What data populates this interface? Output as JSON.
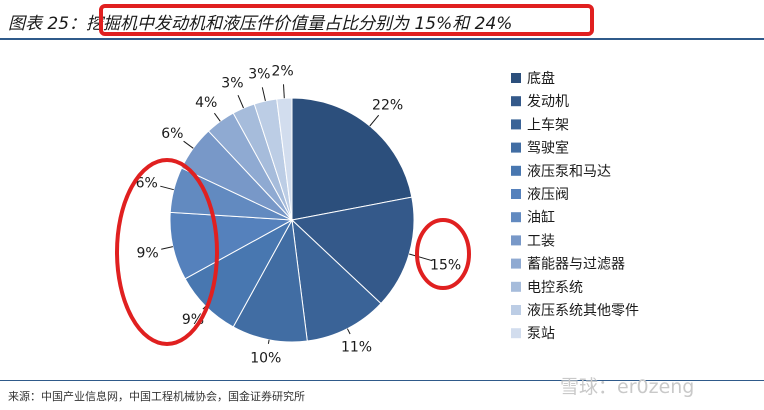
{
  "header": {
    "figure_no": "图表 25：",
    "title": "挖掘机中发动机和液压件价值量占比分别为 15%和 24%"
  },
  "source": "来源：中国产业信息网，中国工程机械协会，国金证券研究所",
  "watermark": "雪球：er0zeng",
  "chart_data": {
    "type": "pie",
    "title": "挖掘机中发动机和液压件价值量占比分别为 15%和 24%",
    "legend_position": "right",
    "slices": [
      {
        "name": "底盘",
        "value": 22,
        "label": "22%",
        "color": "#2c4f7c"
      },
      {
        "name": "发动机",
        "value": 15,
        "label": "15%",
        "color": "#34598a"
      },
      {
        "name": "上车架",
        "value": 11,
        "label": "11%",
        "color": "#3a6397"
      },
      {
        "name": "驾驶室",
        "value": 10,
        "label": "10%",
        "color": "#416da3"
      },
      {
        "name": "液压泵和马达",
        "value": 9,
        "label": "9%",
        "color": "#4877b0"
      },
      {
        "name": "液压阀",
        "value": 9,
        "label": "9%",
        "color": "#5581bc"
      },
      {
        "name": "油缸",
        "value": 6,
        "label": "6%",
        "color": "#628ac0"
      },
      {
        "name": "工装",
        "value": 6,
        "label": "6%",
        "color": "#7898c8"
      },
      {
        "name": "蓄能器与过滤器",
        "value": 4,
        "label": "4%",
        "color": "#8faad2"
      },
      {
        "name": "电控系统",
        "value": 3,
        "label": "3%",
        "color": "#a6bcdb"
      },
      {
        "name": "液压系统其他零件",
        "value": 3,
        "label": "3%",
        "color": "#bccde5"
      },
      {
        "name": "泵站",
        "value": 2,
        "label": "2%",
        "color": "#d2ddee"
      }
    ]
  }
}
